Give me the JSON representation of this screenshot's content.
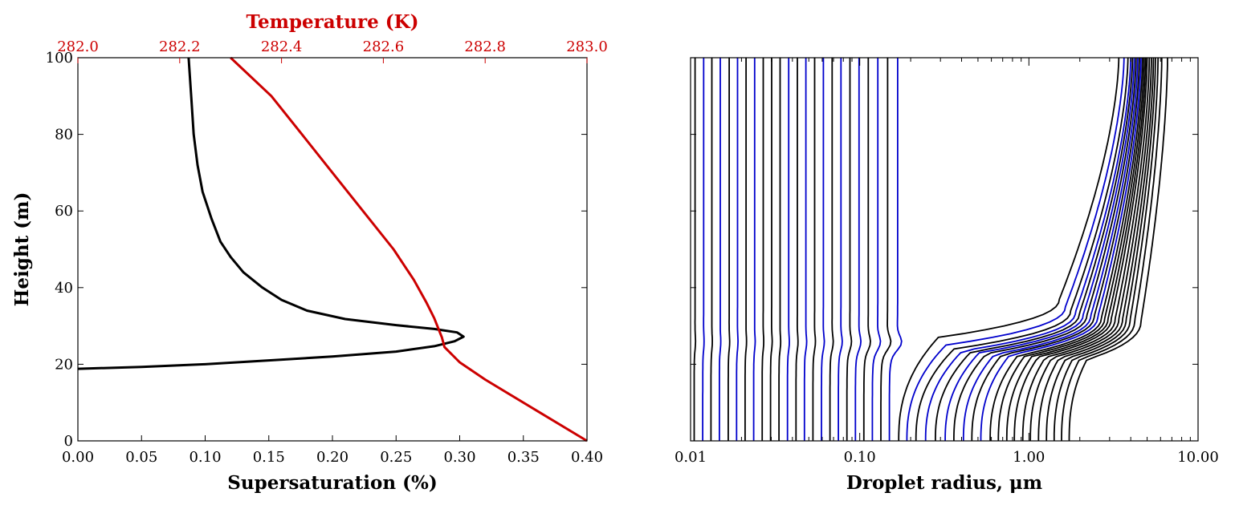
{
  "chart_data": [
    {
      "type": "line",
      "xlabel": "Supersaturation (%)",
      "ylabel": "Height (m)",
      "x2label": "Temperature (K)",
      "xlim": [
        0.0,
        0.4
      ],
      "ylim": [
        0,
        100
      ],
      "x2lim": [
        282.0,
        283.0
      ],
      "xticks": [
        "0.00",
        "0.05",
        "0.10",
        "0.15",
        "0.20",
        "0.25",
        "0.30",
        "0.35",
        "0.40"
      ],
      "yticks": [
        "0",
        "20",
        "40",
        "60",
        "80",
        "100"
      ],
      "x2ticks": [
        "282.0",
        "282.2",
        "282.4",
        "282.6",
        "282.8",
        "283.0"
      ],
      "grid": false,
      "series": [
        {
          "axis": "bottom",
          "color": "#000000",
          "points": [
            [
              0.0,
              18.8
            ],
            [
              0.05,
              19.3
            ],
            [
              0.1,
              20.0
            ],
            [
              0.15,
              21.0
            ],
            [
              0.2,
              22.0
            ],
            [
              0.25,
              23.3
            ],
            [
              0.28,
              24.7
            ],
            [
              0.296,
              26.0
            ],
            [
              0.303,
              27.2
            ],
            [
              0.298,
              28.3
            ],
            [
              0.28,
              29.2
            ],
            [
              0.25,
              30.2
            ],
            [
              0.21,
              31.8
            ],
            [
              0.18,
              34.0
            ],
            [
              0.16,
              36.8
            ],
            [
              0.145,
              40.0
            ],
            [
              0.13,
              44.0
            ],
            [
              0.12,
              48.0
            ],
            [
              0.112,
              52.0
            ],
            [
              0.105,
              58.0
            ],
            [
              0.098,
              65.0
            ],
            [
              0.094,
              72.0
            ],
            [
              0.091,
              80.0
            ],
            [
              0.089,
              90.0
            ],
            [
              0.087,
              100.0
            ]
          ]
        },
        {
          "axis": "top",
          "color": "#cc0000",
          "points": [
            [
              283.0,
              0.0
            ],
            [
              282.9,
              8.0
            ],
            [
              282.8,
              16.0
            ],
            [
              282.75,
              20.5
            ],
            [
              282.72,
              24.5
            ],
            [
              282.715,
              27.0
            ],
            [
              282.7,
              32.0
            ],
            [
              282.685,
              36.0
            ],
            [
              282.66,
              42.0
            ],
            [
              282.62,
              50.0
            ],
            [
              282.56,
              60.0
            ],
            [
              282.5,
              70.0
            ],
            [
              282.44,
              80.0
            ],
            [
              282.38,
              90.0
            ],
            [
              282.3,
              100.0
            ]
          ]
        }
      ]
    },
    {
      "type": "line",
      "xlabel": "Droplet radius, μm",
      "ylabel": "",
      "xscale": "log",
      "xlim": [
        0.01,
        10.0
      ],
      "ylim": [
        0,
        100
      ],
      "xticks": [
        "0.01",
        "0.10",
        "1.00",
        "10.00"
      ],
      "grid": false,
      "left_group": [
        {
          "r": 0.0105,
          "color": "#000000"
        },
        {
          "r": 0.0118,
          "color": "#0000cc"
        },
        {
          "r": 0.0132,
          "color": "#000000"
        },
        {
          "r": 0.0148,
          "color": "#0000cc"
        },
        {
          "r": 0.0167,
          "color": "#000000"
        },
        {
          "r": 0.0187,
          "color": "#0000cc"
        },
        {
          "r": 0.021,
          "color": "#000000"
        },
        {
          "r": 0.0236,
          "color": "#0000cc"
        },
        {
          "r": 0.0265,
          "color": "#000000"
        },
        {
          "r": 0.0297,
          "color": "#000000"
        },
        {
          "r": 0.0333,
          "color": "#000000"
        },
        {
          "r": 0.0374,
          "color": "#0000cc"
        },
        {
          "r": 0.042,
          "color": "#000000"
        },
        {
          "r": 0.0471,
          "color": "#0000cc"
        },
        {
          "r": 0.0529,
          "color": "#000000"
        },
        {
          "r": 0.0594,
          "color": "#0000cc"
        },
        {
          "r": 0.0667,
          "color": "#000000"
        },
        {
          "r": 0.0748,
          "color": "#0000cc"
        },
        {
          "r": 0.084,
          "color": "#000000"
        },
        {
          "r": 0.0943,
          "color": "#0000cc"
        },
        {
          "r": 0.1058,
          "color": "#000000"
        },
        {
          "r": 0.1188,
          "color": "#0000cc"
        },
        {
          "r": 0.1334,
          "color": "#000000"
        },
        {
          "r": 0.1497,
          "color": "#0000cc"
        }
      ],
      "right_group": [
        {
          "r0": 0.17,
          "rtop": 3.4,
          "h": 33,
          "color": "#000000"
        },
        {
          "r0": 0.19,
          "rtop": 3.65,
          "h": 31,
          "color": "#0000cc"
        },
        {
          "r0": 0.215,
          "rtop": 3.85,
          "h": 30,
          "color": "#000000"
        },
        {
          "r0": 0.245,
          "rtop": 4.0,
          "h": 29.5,
          "color": "#0000cc"
        },
        {
          "r0": 0.28,
          "rtop": 4.1,
          "h": 29.2,
          "color": "#000000"
        },
        {
          "r0": 0.32,
          "rtop": 4.2,
          "h": 29,
          "color": "#0000cc"
        },
        {
          "r0": 0.36,
          "rtop": 4.3,
          "h": 28.8,
          "color": "#000000"
        },
        {
          "r0": 0.41,
          "rtop": 4.4,
          "h": 28.6,
          "color": "#0000cc"
        },
        {
          "r0": 0.46,
          "rtop": 4.5,
          "h": 28.5,
          "color": "#000000"
        },
        {
          "r0": 0.52,
          "rtop": 4.6,
          "h": 28.4,
          "color": "#0000cc"
        },
        {
          "r0": 0.59,
          "rtop": 4.7,
          "h": 28.2,
          "color": "#000000"
        },
        {
          "r0": 0.66,
          "rtop": 4.8,
          "h": 28.1,
          "color": "#000000"
        },
        {
          "r0": 0.74,
          "rtop": 4.9,
          "h": 28,
          "color": "#000000"
        },
        {
          "r0": 0.82,
          "rtop": 5.0,
          "h": 27.9,
          "color": "#000000"
        },
        {
          "r0": 0.92,
          "rtop": 5.15,
          "h": 27.8,
          "color": "#000000"
        },
        {
          "r0": 1.02,
          "rtop": 5.3,
          "h": 27.7,
          "color": "#000000"
        },
        {
          "r0": 1.14,
          "rtop": 5.45,
          "h": 27.6,
          "color": "#000000"
        },
        {
          "r0": 1.27,
          "rtop": 5.6,
          "h": 27.5,
          "color": "#000000"
        },
        {
          "r0": 1.41,
          "rtop": 5.8,
          "h": 27.4,
          "color": "#000000"
        },
        {
          "r0": 1.56,
          "rtop": 6.1,
          "h": 27.3,
          "color": "#000000"
        },
        {
          "r0": 1.73,
          "rtop": 6.6,
          "h": 27.2,
          "color": "#000000"
        }
      ]
    }
  ]
}
